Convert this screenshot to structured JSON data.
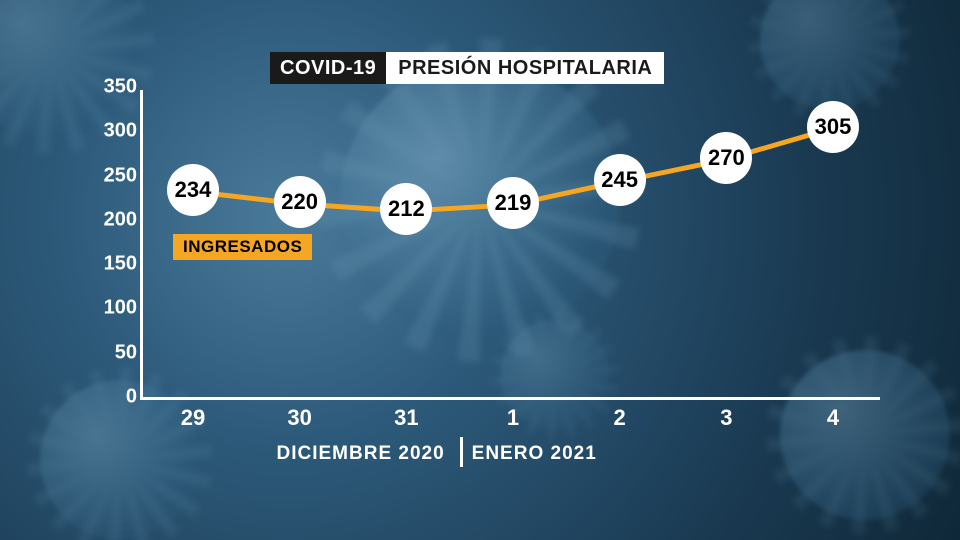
{
  "chart": {
    "type": "line",
    "title_dark": "COVID-19",
    "title_light": "PRESIÓN HOSPITALARIA",
    "series_label": "INGRESADOS",
    "series_label_bg": "#f5a623",
    "series_label_color": "#000000",
    "line_color": "#f5a623",
    "line_width": 5,
    "point_bg": "#ffffff",
    "point_text_color": "#000000",
    "point_radius": 26,
    "point_fontsize": 22,
    "axis_color": "#ffffff",
    "axis_width": 3,
    "ylabel_fontsize": 20,
    "xlabel_fontsize": 22,
    "group_fontsize": 19,
    "ylim": [
      0,
      350
    ],
    "ytick_step": 50,
    "yticks": [
      0,
      50,
      100,
      150,
      200,
      250,
      300,
      350
    ],
    "xticks": [
      "29",
      "30",
      "31",
      "1",
      "2",
      "3",
      "4"
    ],
    "values": [
      234,
      220,
      212,
      219,
      245,
      270,
      305
    ],
    "x_groups": [
      {
        "label": "DICIEMBRE  2020",
        "span": [
          0,
          2
        ]
      },
      {
        "label": "ENERO  2021",
        "span": [
          3,
          6
        ]
      }
    ],
    "background_colors": {
      "title_dark_bg": "#1a1a1a",
      "title_dark_text": "#ffffff",
      "title_light_bg": "#ffffff",
      "title_light_text": "#1a1a1a"
    }
  }
}
